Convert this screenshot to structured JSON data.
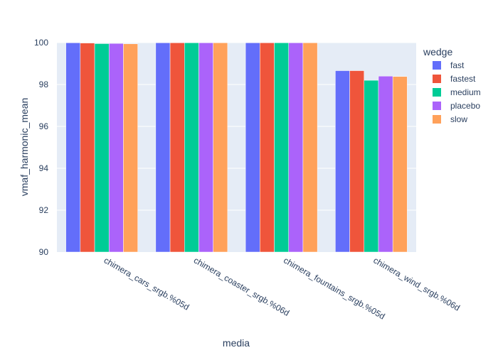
{
  "chart_data": {
    "type": "bar",
    "title": "",
    "xlabel": "media",
    "ylabel": "vmaf_harmonic_mean",
    "ylim": [
      90,
      100
    ],
    "yticks": [
      90,
      92,
      94,
      96,
      98,
      100
    ],
    "grid": true,
    "legend_placement": "right",
    "legend_title": "wedge",
    "categories": [
      "chimera_cars_srgb.%05d",
      "chimera_coaster_srgb.%06d",
      "chimera_fountains_srgb.%05d",
      "chimera_wind_srgb.%06d"
    ],
    "series": [
      {
        "name": "fast",
        "color": "#636efa",
        "values": [
          99.99,
          99.99,
          99.99,
          98.66
        ]
      },
      {
        "name": "fastest",
        "color": "#ef553b",
        "values": [
          99.98,
          99.99,
          99.99,
          98.66
        ]
      },
      {
        "name": "medium",
        "color": "#00cc96",
        "values": [
          99.95,
          99.99,
          99.99,
          98.2
        ]
      },
      {
        "name": "placebo",
        "color": "#ab63fa",
        "values": [
          99.96,
          99.99,
          99.99,
          98.4
        ]
      },
      {
        "name": "slow",
        "color": "#ffa15a",
        "values": [
          99.94,
          99.99,
          99.99,
          98.38
        ]
      }
    ]
  }
}
